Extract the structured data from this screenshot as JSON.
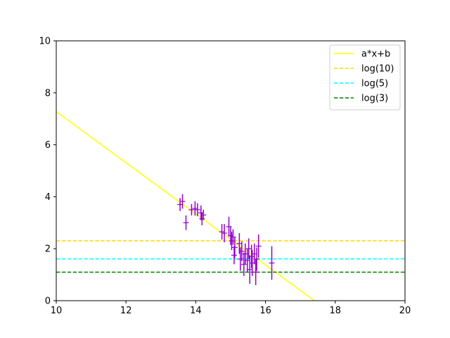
{
  "chart_data": {
    "type": "scatter",
    "title": "",
    "xlabel": "",
    "ylabel": "",
    "xlim": [
      10,
      20
    ],
    "ylim": [
      0,
      10
    ],
    "xticks": [
      "10",
      "12",
      "14",
      "16",
      "18",
      "20"
    ],
    "yticks": [
      "0",
      "2",
      "4",
      "6",
      "8",
      "10"
    ],
    "grid": false,
    "legend_position": "top-right",
    "points": {
      "color": "#9400d3",
      "data": [
        {
          "x": 13.55,
          "y": 3.7,
          "err": 0.25
        },
        {
          "x": 13.62,
          "y": 3.82,
          "err": 0.28
        },
        {
          "x": 13.72,
          "y": 3.0,
          "err": 0.28
        },
        {
          "x": 13.88,
          "y": 3.5,
          "err": 0.22
        },
        {
          "x": 13.98,
          "y": 3.55,
          "err": 0.28
        },
        {
          "x": 14.05,
          "y": 3.5,
          "err": 0.25
        },
        {
          "x": 14.15,
          "y": 3.38,
          "err": 0.28
        },
        {
          "x": 14.18,
          "y": 3.15,
          "err": 0.25
        },
        {
          "x": 14.22,
          "y": 3.3,
          "err": 0.2
        },
        {
          "x": 14.75,
          "y": 2.65,
          "err": 0.3
        },
        {
          "x": 14.82,
          "y": 2.6,
          "err": 0.35
        },
        {
          "x": 14.95,
          "y": 2.85,
          "err": 0.38
        },
        {
          "x": 15.0,
          "y": 2.5,
          "err": 0.35
        },
        {
          "x": 15.03,
          "y": 2.3,
          "err": 0.35
        },
        {
          "x": 15.07,
          "y": 2.45,
          "err": 0.3
        },
        {
          "x": 15.1,
          "y": 1.75,
          "err": 0.35
        },
        {
          "x": 15.12,
          "y": 2.05,
          "err": 0.4
        },
        {
          "x": 15.25,
          "y": 2.2,
          "err": 0.4
        },
        {
          "x": 15.28,
          "y": 1.6,
          "err": 0.45
        },
        {
          "x": 15.32,
          "y": 1.9,
          "err": 0.38
        },
        {
          "x": 15.38,
          "y": 1.4,
          "err": 0.45
        },
        {
          "x": 15.42,
          "y": 1.8,
          "err": 0.4
        },
        {
          "x": 15.48,
          "y": 1.55,
          "err": 0.45
        },
        {
          "x": 15.52,
          "y": 2.0,
          "err": 0.4
        },
        {
          "x": 15.55,
          "y": 1.2,
          "err": 0.55
        },
        {
          "x": 15.6,
          "y": 1.7,
          "err": 0.45
        },
        {
          "x": 15.62,
          "y": 1.45,
          "err": 0.5
        },
        {
          "x": 15.68,
          "y": 1.8,
          "err": 0.4
        },
        {
          "x": 15.72,
          "y": 1.1,
          "err": 0.5
        },
        {
          "x": 15.75,
          "y": 1.6,
          "err": 0.45
        },
        {
          "x": 15.8,
          "y": 2.1,
          "err": 0.45
        },
        {
          "x": 16.18,
          "y": 1.45,
          "err": 0.65
        }
      ]
    },
    "series": [
      {
        "name": "a*x+b",
        "type": "line",
        "color": "#ffff00",
        "style": "solid",
        "x": [
          10,
          17.4
        ],
        "y": [
          7.28,
          0
        ]
      },
      {
        "name": "log(10)",
        "type": "hline",
        "color": "#ffd700",
        "style": "dashed",
        "y": 2.302585
      },
      {
        "name": "log(5)",
        "type": "hline",
        "color": "#00ffff",
        "style": "dashed",
        "y": 1.609438
      },
      {
        "name": "log(3)",
        "type": "hline",
        "color": "#008000",
        "style": "dashed",
        "y": 1.098612
      }
    ]
  }
}
